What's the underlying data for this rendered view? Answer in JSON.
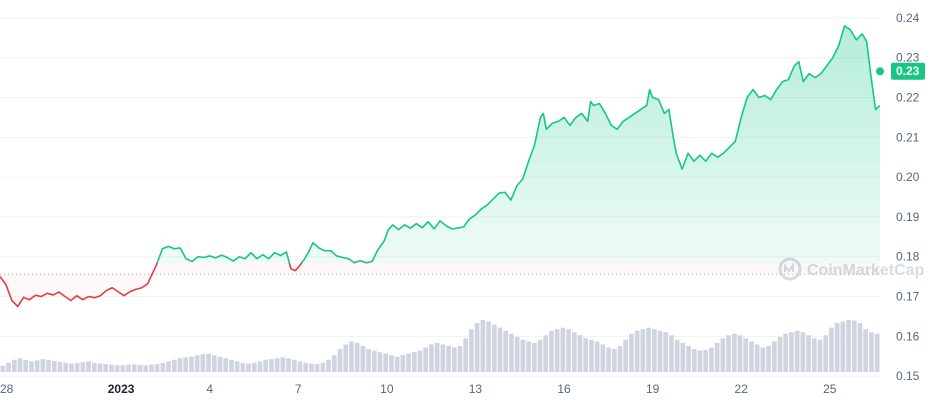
{
  "chart_data": {
    "type": "line",
    "y_ticks": [
      "0.24",
      "0.23",
      "0.22",
      "0.21",
      "0.20",
      "0.19",
      "0.18",
      "0.17",
      "0.16",
      "0.15"
    ],
    "y_tick_values": [
      0.24,
      0.23,
      0.22,
      0.21,
      0.2,
      0.19,
      0.18,
      0.17,
      0.16,
      0.15
    ],
    "ylim": [
      0.144,
      0.2445
    ],
    "x_ticks": [
      {
        "label": "28",
        "day": -4,
        "bold": false
      },
      {
        "label": "2023",
        "day": 0,
        "bold": true
      },
      {
        "label": "4",
        "day": 3,
        "bold": false
      },
      {
        "label": "7",
        "day": 6,
        "bold": false
      },
      {
        "label": "10",
        "day": 9,
        "bold": false
      },
      {
        "label": "13",
        "day": 12,
        "bold": false
      },
      {
        "label": "16",
        "day": 15,
        "bold": false
      },
      {
        "label": "19",
        "day": 18,
        "bold": false
      },
      {
        "label": "22",
        "day": 21,
        "bold": false
      },
      {
        "label": "25",
        "day": 24,
        "bold": false
      }
    ],
    "xlim": [
      -4.1,
      25.7
    ],
    "reference_price": 0.1756,
    "current_price_label": "0.23",
    "current_price": 0.2266,
    "series": [
      {
        "points": [
          [
            -4.1,
            0.175
          ],
          [
            -3.9,
            0.173
          ],
          [
            -3.7,
            0.169
          ],
          [
            -3.5,
            0.1675
          ],
          [
            -3.3,
            0.1698
          ],
          [
            -3.1,
            0.1692
          ],
          [
            -2.9,
            0.1703
          ],
          [
            -2.7,
            0.17
          ],
          [
            -2.5,
            0.1708
          ],
          [
            -2.3,
            0.1704
          ],
          [
            -2.1,
            0.1711
          ],
          [
            -1.9,
            0.17
          ],
          [
            -1.7,
            0.169
          ],
          [
            -1.5,
            0.1702
          ],
          [
            -1.3,
            0.1692
          ],
          [
            -1.1,
            0.17
          ],
          [
            -0.9,
            0.1697
          ],
          [
            -0.7,
            0.1702
          ],
          [
            -0.5,
            0.1715
          ],
          [
            -0.3,
            0.1722
          ],
          [
            -0.1,
            0.1712
          ],
          [
            0.1,
            0.1702
          ],
          [
            0.3,
            0.1712
          ],
          [
            0.5,
            0.1718
          ],
          [
            0.7,
            0.1722
          ],
          [
            0.9,
            0.1732
          ],
          [
            1.05,
            0.1756
          ],
          [
            1.2,
            0.178
          ],
          [
            1.4,
            0.182
          ],
          [
            1.6,
            0.1826
          ],
          [
            1.8,
            0.182
          ],
          [
            2.0,
            0.1822
          ],
          [
            2.2,
            0.1795
          ],
          [
            2.4,
            0.1788
          ],
          [
            2.6,
            0.18
          ],
          [
            2.8,
            0.1798
          ],
          [
            3.0,
            0.1802
          ],
          [
            3.2,
            0.1797
          ],
          [
            3.4,
            0.1804
          ],
          [
            3.6,
            0.1798
          ],
          [
            3.8,
            0.1789
          ],
          [
            4.0,
            0.18
          ],
          [
            4.2,
            0.1795
          ],
          [
            4.4,
            0.181
          ],
          [
            4.6,
            0.1795
          ],
          [
            4.8,
            0.1805
          ],
          [
            5.0,
            0.1795
          ],
          [
            5.2,
            0.181
          ],
          [
            5.4,
            0.1803
          ],
          [
            5.6,
            0.1812
          ],
          [
            5.75,
            0.177
          ],
          [
            5.9,
            0.1765
          ],
          [
            6.05,
            0.1778
          ],
          [
            6.2,
            0.1793
          ],
          [
            6.35,
            0.1812
          ],
          [
            6.5,
            0.1835
          ],
          [
            6.7,
            0.1822
          ],
          [
            6.9,
            0.1815
          ],
          [
            7.1,
            0.1815
          ],
          [
            7.3,
            0.1802
          ],
          [
            7.5,
            0.1798
          ],
          [
            7.7,
            0.1795
          ],
          [
            7.9,
            0.1785
          ],
          [
            8.1,
            0.179
          ],
          [
            8.3,
            0.1785
          ],
          [
            8.5,
            0.1788
          ],
          [
            8.7,
            0.1818
          ],
          [
            8.9,
            0.1838
          ],
          [
            9.05,
            0.1868
          ],
          [
            9.2,
            0.188
          ],
          [
            9.4,
            0.1868
          ],
          [
            9.6,
            0.188
          ],
          [
            9.8,
            0.1872
          ],
          [
            10.0,
            0.1883
          ],
          [
            10.2,
            0.1873
          ],
          [
            10.4,
            0.1888
          ],
          [
            10.6,
            0.187
          ],
          [
            10.8,
            0.189
          ],
          [
            11.0,
            0.1878
          ],
          [
            11.2,
            0.187
          ],
          [
            11.4,
            0.1872
          ],
          [
            11.6,
            0.1875
          ],
          [
            11.8,
            0.1895
          ],
          [
            12.0,
            0.1905
          ],
          [
            12.2,
            0.192
          ],
          [
            12.4,
            0.193
          ],
          [
            12.6,
            0.1945
          ],
          [
            12.8,
            0.196
          ],
          [
            13.0,
            0.1962
          ],
          [
            13.2,
            0.1942
          ],
          [
            13.4,
            0.1978
          ],
          [
            13.6,
            0.1995
          ],
          [
            13.8,
            0.204
          ],
          [
            14.0,
            0.208
          ],
          [
            14.2,
            0.215
          ],
          [
            14.3,
            0.216
          ],
          [
            14.4,
            0.212
          ],
          [
            14.6,
            0.2135
          ],
          [
            14.8,
            0.214
          ],
          [
            15.0,
            0.215
          ],
          [
            15.2,
            0.213
          ],
          [
            15.4,
            0.215
          ],
          [
            15.6,
            0.216
          ],
          [
            15.8,
            0.214
          ],
          [
            15.9,
            0.219
          ],
          [
            16.0,
            0.218
          ],
          [
            16.2,
            0.2185
          ],
          [
            16.4,
            0.216
          ],
          [
            16.6,
            0.213
          ],
          [
            16.8,
            0.212
          ],
          [
            17.0,
            0.214
          ],
          [
            17.2,
            0.215
          ],
          [
            17.4,
            0.216
          ],
          [
            17.6,
            0.217
          ],
          [
            17.8,
            0.218
          ],
          [
            17.9,
            0.222
          ],
          [
            18.0,
            0.22
          ],
          [
            18.2,
            0.2195
          ],
          [
            18.4,
            0.216
          ],
          [
            18.55,
            0.217
          ],
          [
            18.7,
            0.21
          ],
          [
            18.8,
            0.206
          ],
          [
            18.9,
            0.204
          ],
          [
            19.0,
            0.202
          ],
          [
            19.2,
            0.206
          ],
          [
            19.4,
            0.204
          ],
          [
            19.6,
            0.2055
          ],
          [
            19.8,
            0.204
          ],
          [
            20.0,
            0.206
          ],
          [
            20.2,
            0.205
          ],
          [
            20.4,
            0.206
          ],
          [
            20.6,
            0.2075
          ],
          [
            20.8,
            0.209
          ],
          [
            21.0,
            0.215
          ],
          [
            21.2,
            0.22
          ],
          [
            21.4,
            0.222
          ],
          [
            21.6,
            0.22
          ],
          [
            21.8,
            0.2205
          ],
          [
            22.0,
            0.2195
          ],
          [
            22.2,
            0.222
          ],
          [
            22.4,
            0.224
          ],
          [
            22.6,
            0.2245
          ],
          [
            22.8,
            0.228
          ],
          [
            22.95,
            0.229
          ],
          [
            23.1,
            0.224
          ],
          [
            23.3,
            0.226
          ],
          [
            23.5,
            0.225
          ],
          [
            23.7,
            0.226
          ],
          [
            23.9,
            0.228
          ],
          [
            24.1,
            0.23
          ],
          [
            24.3,
            0.233
          ],
          [
            24.5,
            0.238
          ],
          [
            24.7,
            0.237
          ],
          [
            24.9,
            0.2345
          ],
          [
            25.1,
            0.236
          ],
          [
            25.25,
            0.234
          ],
          [
            25.4,
            0.225
          ],
          [
            25.55,
            0.217
          ],
          [
            25.7,
            0.218
          ]
        ]
      }
    ],
    "volume_values": [
      0.2,
      0.3,
      0.4,
      0.45,
      0.4,
      0.35,
      0.38,
      0.42,
      0.4,
      0.36,
      0.33,
      0.3,
      0.28,
      0.3,
      0.32,
      0.35,
      0.3,
      0.28,
      0.26,
      0.24,
      0.22,
      0.22,
      0.24,
      0.25,
      0.23,
      0.22,
      0.24,
      0.26,
      0.3,
      0.35,
      0.4,
      0.45,
      0.48,
      0.5,
      0.55,
      0.58,
      0.6,
      0.55,
      0.5,
      0.45,
      0.4,
      0.35,
      0.3,
      0.28,
      0.3,
      0.35,
      0.4,
      0.42,
      0.45,
      0.48,
      0.45,
      0.4,
      0.35,
      0.3,
      0.28,
      0.26,
      0.3,
      0.4,
      0.55,
      0.75,
      0.9,
      1.0,
      0.95,
      0.85,
      0.75,
      0.7,
      0.65,
      0.6,
      0.55,
      0.5,
      0.55,
      0.6,
      0.65,
      0.7,
      0.8,
      0.9,
      0.95,
      0.9,
      0.85,
      0.8,
      0.85,
      1.1,
      1.4,
      1.6,
      1.7,
      1.65,
      1.55,
      1.45,
      1.35,
      1.25,
      1.15,
      1.05,
      1.0,
      0.95,
      1.05,
      1.2,
      1.35,
      1.4,
      1.45,
      1.4,
      1.3,
      1.2,
      1.1,
      1.05,
      1.0,
      0.9,
      0.8,
      0.75,
      0.85,
      1.05,
      1.25,
      1.35,
      1.4,
      1.45,
      1.4,
      1.35,
      1.3,
      1.2,
      1.05,
      0.95,
      0.85,
      0.75,
      0.7,
      0.72,
      0.8,
      0.95,
      1.1,
      1.2,
      1.25,
      1.2,
      1.1,
      1.0,
      0.9,
      0.8,
      0.85,
      1.0,
      1.15,
      1.25,
      1.3,
      1.35,
      1.3,
      1.2,
      1.1,
      1.05,
      1.2,
      1.45,
      1.6,
      1.65,
      1.7,
      1.68,
      1.6,
      1.4,
      1.3,
      1.25
    ]
  },
  "watermark": {
    "text": "CoinMarketCap"
  },
  "colors": {
    "up": "#16c784",
    "down": "#ea3943",
    "grid": "#eff2f5",
    "reference": "#a6b0c3",
    "volume": "#cfd4e0",
    "axis_text": "#58667e"
  }
}
